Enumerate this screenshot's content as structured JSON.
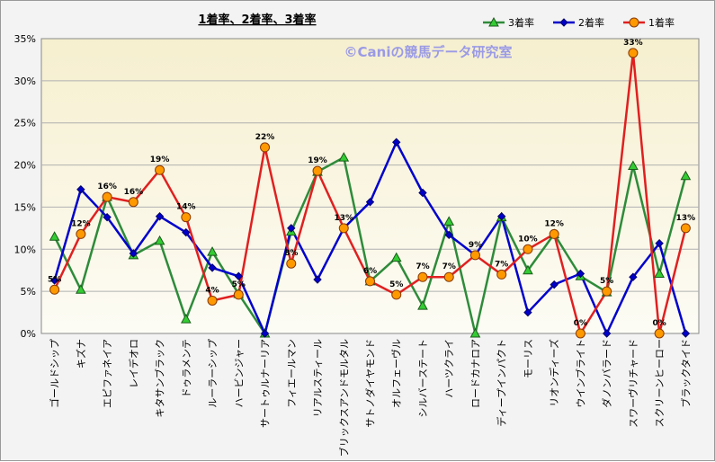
{
  "chart_data": {
    "type": "line",
    "title": "1着率、2着率、3着率",
    "watermark": "©Caniの競馬データ研究室",
    "ylim": [
      0,
      35
    ],
    "y_ticks": [
      "0%",
      "5%",
      "10%",
      "15%",
      "20%",
      "25%",
      "30%",
      "35%"
    ],
    "grid": true,
    "legend_position": "top-right",
    "categories": [
      "ゴールドシップ",
      "キズナ",
      "エピファネイア",
      "レイデオロ",
      "キタサンブラック",
      "ドゥラメンテ",
      "ルーラーシップ",
      "ハービンジャー",
      "サートゥルナーリア",
      "フィエールマン",
      "リアルスティール",
      "ブリックスアンドモルタル",
      "サトノダイヤモンド",
      "オルフェーヴル",
      "シルバーステート",
      "ハーツクライ",
      "ロードカナロア",
      "ディープインパクト",
      "モーリス",
      "リオンディーズ",
      "ウインブライト",
      "ダノンバラード",
      "スワーヴリチャード",
      "スクリーンヒーロー",
      "ブラックタイド"
    ],
    "series": [
      {
        "name": "3着率",
        "color": "#2e8b3a",
        "marker": "triangle",
        "marker_color": "#33cc33",
        "values": [
          11.5,
          5.2,
          16.2,
          9.3,
          11.0,
          1.7,
          9.7,
          4.7,
          0,
          12.1,
          19.2,
          20.9,
          6.2,
          9.0,
          3.3,
          13.3,
          0,
          13.8,
          7.5,
          11.8,
          6.8,
          4.9,
          19.9,
          7.1,
          18.7
        ]
      },
      {
        "name": "2着率",
        "color": "#0000cc",
        "marker": "diamond",
        "marker_color": "#0000cc",
        "values": [
          6.3,
          17.1,
          13.8,
          9.5,
          13.9,
          12.0,
          7.8,
          6.8,
          0,
          12.5,
          6.4,
          12.5,
          15.6,
          22.7,
          16.7,
          11.7,
          9.3,
          13.9,
          2.5,
          5.8,
          7.1,
          0,
          6.7,
          10.7,
          0
        ]
      },
      {
        "name": "1着率",
        "color": "#e02020",
        "marker": "circle",
        "marker_color": "#ff9900",
        "values": [
          5.2,
          11.8,
          16.2,
          15.6,
          19.4,
          13.8,
          3.9,
          4.6,
          22.1,
          8.3,
          19.3,
          12.5,
          6.2,
          4.6,
          6.7,
          6.7,
          9.3,
          7.0,
          10.0,
          11.8,
          0,
          5.0,
          33.3,
          0,
          12.5
        ],
        "labels": [
          "5%",
          "12%",
          "16%",
          "16%",
          "19%",
          "14%",
          "4%",
          "5%",
          "22%",
          "8%",
          "19%",
          "13%",
          "6%",
          "5%",
          "7%",
          "7%",
          "9%",
          "7%",
          "10%",
          "12%",
          "0%",
          "5%",
          "33%",
          "0%",
          "13%"
        ]
      }
    ]
  }
}
